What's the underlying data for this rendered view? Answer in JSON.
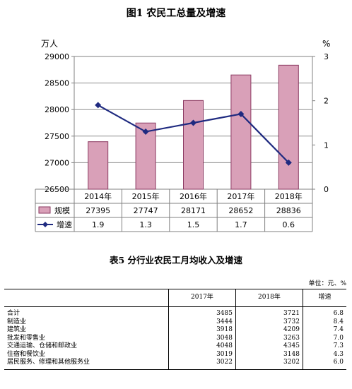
{
  "figure": {
    "title": "图1 农民工总量及增速"
  },
  "chart_data": {
    "type": "bar",
    "title": "图1 农民工总量及增速",
    "left_unit": "万人",
    "right_unit": "%",
    "categories": [
      "2014年",
      "2015年",
      "2016年",
      "2017年",
      "2018年"
    ],
    "ylim": [
      26500,
      29000
    ],
    "yticks": [
      26500,
      27000,
      27500,
      28000,
      28500,
      29000
    ],
    "y2lim": [
      0,
      3
    ],
    "y2ticks": [
      0,
      1,
      2,
      3
    ],
    "grid": true,
    "series": [
      {
        "name": "规模",
        "type": "bar",
        "axis": "left",
        "color": "#d9a0b8",
        "edge": "#8b3a62",
        "values": [
          27395,
          27747,
          28171,
          28652,
          28836
        ]
      },
      {
        "name": "增速",
        "type": "line",
        "axis": "right",
        "color": "#1f2a80",
        "values": [
          1.9,
          1.3,
          1.5,
          1.7,
          0.6
        ]
      }
    ],
    "table_rows": [
      {
        "name": "规模",
        "values": [
          "27395",
          "27747",
          "28171",
          "28652",
          "28836"
        ]
      },
      {
        "name": "增速",
        "values": [
          "1.9",
          "1.3",
          "1.5",
          "1.7",
          "0.6"
        ]
      }
    ]
  },
  "income_table": {
    "title": "表5 分行业农民工月均收入及增速",
    "unit": "单位：元、%",
    "headers": [
      "",
      "2017年",
      "2018年",
      "增速"
    ],
    "rows": [
      [
        "合计",
        "3485",
        "3721",
        "6.8"
      ],
      [
        "制造业",
        "3444",
        "3732",
        "8.4"
      ],
      [
        "建筑业",
        "3918",
        "4209",
        "7.4"
      ],
      [
        "批发和零售业",
        "3048",
        "3263",
        "7.0"
      ],
      [
        "交通运输、仓储和邮政业",
        "4048",
        "4345",
        "7.3"
      ],
      [
        "住宿和餐饮业",
        "3019",
        "3148",
        "4.3"
      ],
      [
        "居民服务、修理和其他服务业",
        "3022",
        "3202",
        "6.0"
      ]
    ]
  }
}
